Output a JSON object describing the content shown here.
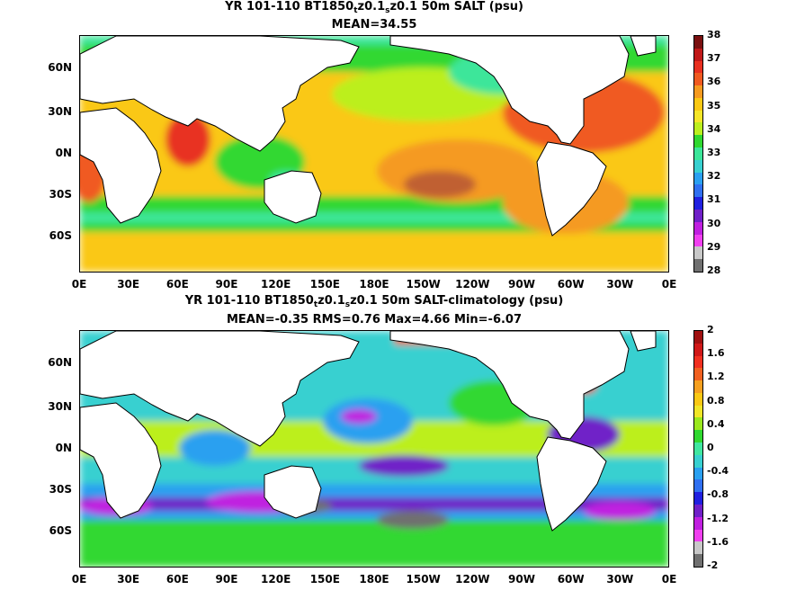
{
  "panels": [
    {
      "title_prefix": "YR 101-110 BT1850",
      "sub1": "t",
      "title_mid": "z0.1",
      "sub2": "s",
      "title_suffix": "z0.1 50m SALT (psu)",
      "stats": "MEAN=34.55",
      "colorbar": {
        "labels": [
          "38",
          "37",
          "36",
          "35",
          "34",
          "33",
          "32",
          "31",
          "30",
          "29",
          "28"
        ],
        "colors": [
          "#7a1010",
          "#c01818",
          "#e83020",
          "#f05a20",
          "#f59a20",
          "#fac814",
          "#f5e628",
          "#bcef1e",
          "#30d830",
          "#3ce69a",
          "#38d0d0",
          "#2aa0f0",
          "#3070f0",
          "#2020e0",
          "#7020c8",
          "#c020e0",
          "#f040f0",
          "#c8c8c8",
          "#707070"
        ]
      }
    },
    {
      "title_prefix": "YR 101-110 BT1850",
      "sub1": "t",
      "title_mid": "z0.1",
      "sub2": "s",
      "title_suffix": "z0.1 50m SALT-climatology (psu)",
      "stats": "MEAN=-0.35   RMS=0.76   Max=4.66   Min=-6.07",
      "colorbar": {
        "labels": [
          "2",
          "1.6",
          "1.2",
          "0.8",
          "0.4",
          "0",
          "-0.4",
          "-0.8",
          "-1.2",
          "-1.6",
          "-2"
        ],
        "colors": [
          "#a01010",
          "#d01818",
          "#f03020",
          "#f06020",
          "#f5a020",
          "#fac814",
          "#f0e628",
          "#9ae81e",
          "#30d830",
          "#40e6a0",
          "#38d0d0",
          "#2aa0f0",
          "#3070f0",
          "#2020e0",
          "#7020c8",
          "#c020e0",
          "#f040f0",
          "#c8c8c8",
          "#707070"
        ]
      }
    }
  ],
  "y_ticks": [
    "60N",
    "30N",
    "0N",
    "30S",
    "60S"
  ],
  "x_ticks": [
    "0E",
    "30E",
    "60E",
    "90E",
    "120E",
    "150E",
    "180E",
    "150W",
    "120W",
    "90W",
    "60W",
    "30W",
    "0E"
  ]
}
